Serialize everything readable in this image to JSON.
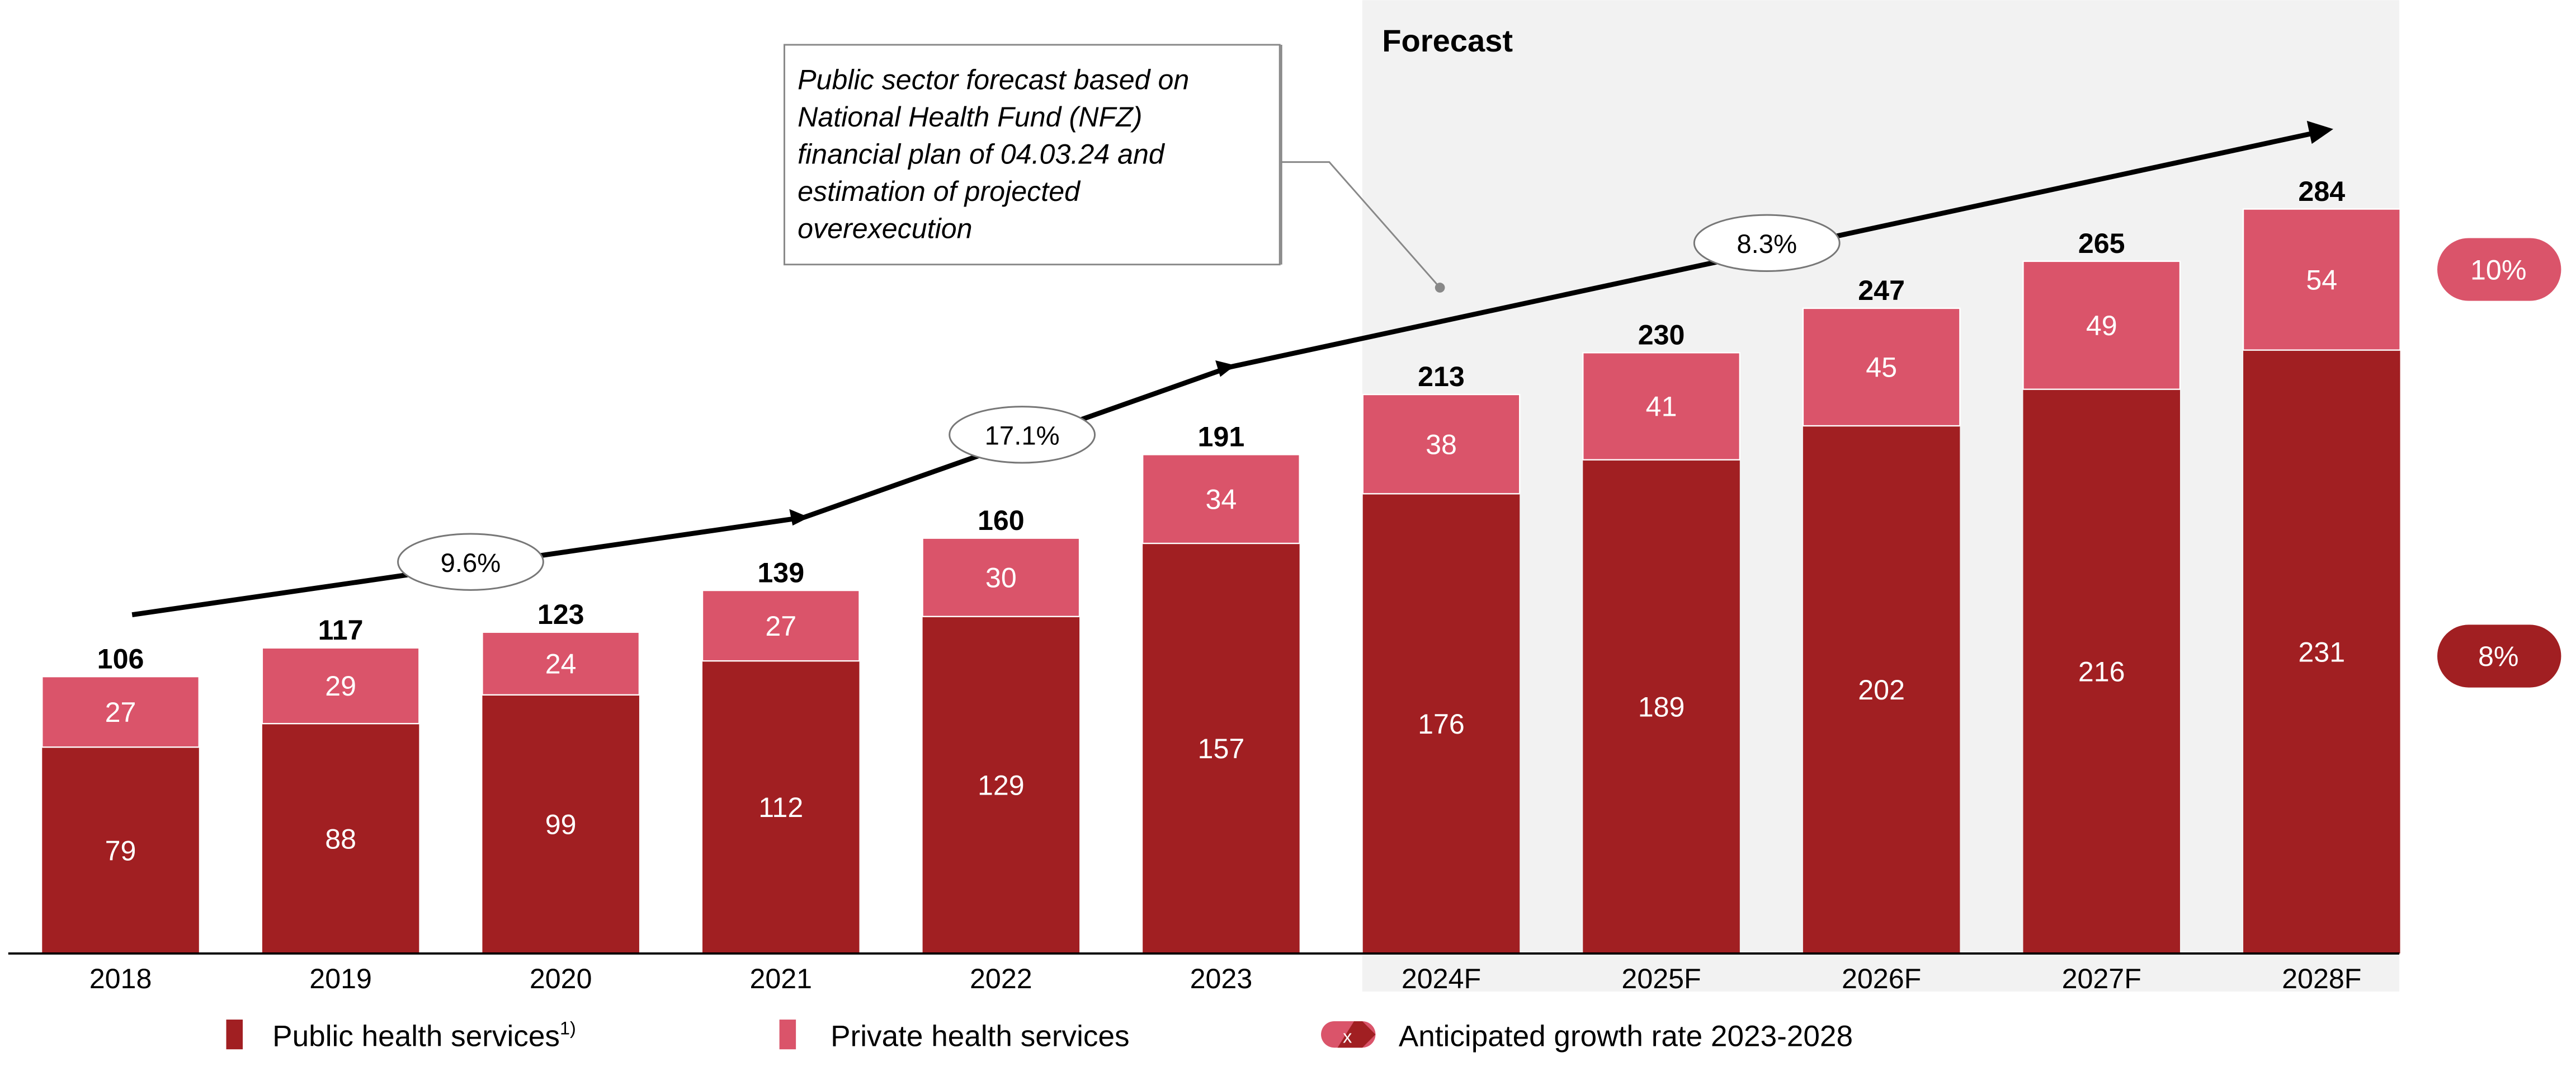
{
  "chart_data": {
    "type": "bar",
    "stacked": true,
    "categories": [
      "2018",
      "2019",
      "2020",
      "2021",
      "2022",
      "2023",
      "2024F",
      "2025F",
      "2026F",
      "2027F",
      "2028F"
    ],
    "series": [
      {
        "name": "Public health services",
        "name_superscript": "1)",
        "color": "#A11F22",
        "values": [
          79,
          88,
          99,
          112,
          129,
          157,
          176,
          189,
          202,
          216,
          231
        ]
      },
      {
        "name": "Private health services",
        "color": "#DA546A",
        "values": [
          27,
          29,
          24,
          27,
          30,
          34,
          38,
          41,
          45,
          49,
          54
        ]
      }
    ],
    "totals": [
      106,
      117,
      123,
      139,
      160,
      191,
      213,
      230,
      247,
      265,
      284
    ],
    "forecast_label": "Forecast",
    "forecast_start": "2024F",
    "forecast_shade_color": "#F2F2F2",
    "growth_arrows": [
      {
        "from": "2018",
        "to": "2021",
        "label": "9.6%"
      },
      {
        "from": "2021",
        "to": "2023",
        "label": "17.1%"
      },
      {
        "from": "2023",
        "to": "2028F",
        "label": "8.3%"
      }
    ],
    "series_growth": [
      {
        "series": "Private health services",
        "label": "10%",
        "color": "#DA546A"
      },
      {
        "series": "Public health services",
        "label": "8%",
        "color": "#A11F22"
      }
    ],
    "annotation": "Public sector forecast based on National Health Fund (NFZ) financial plan of 04.03.24 and estimation of projected overexecution",
    "annotation_lines": [
      "Public sector forecast based on",
      "National Health Fund (NFZ)",
      "financial plan of 04.03.24 and",
      "estimation of projected",
      "overexecution"
    ],
    "legend": {
      "public": "Public health services",
      "public_sup": "1)",
      "private": "Private health services",
      "growth": "Anticipated growth rate 2023-2028",
      "growth_icon_text": "x"
    },
    "ylim": [
      0,
      300
    ],
    "grid": false,
    "legend_placement": "bottom"
  }
}
